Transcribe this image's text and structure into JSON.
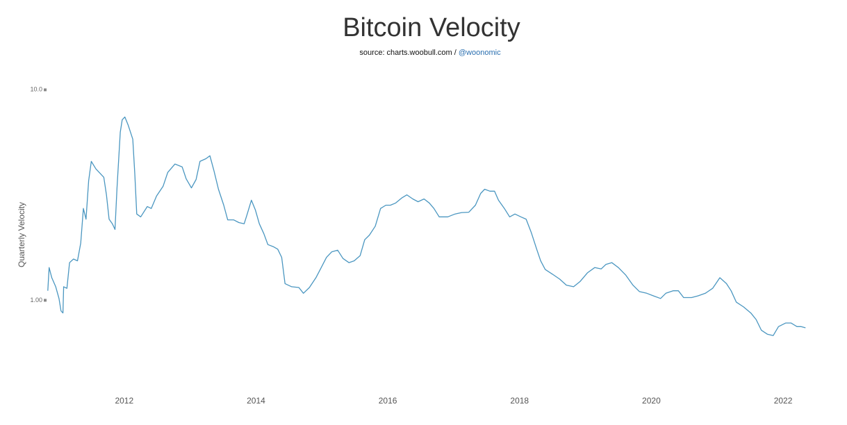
{
  "chart_data": {
    "type": "line",
    "title": "Bitcoin Velocity",
    "subtitle": "source: charts.woobull.com / ",
    "subtitle_link": "@woonomic",
    "y_label": "Quarterly Velocity",
    "yscale": "log",
    "xlim": [
      2010.8,
      2022.4
    ],
    "xticks": [
      2012,
      2014,
      2016,
      2018,
      2020,
      2022
    ],
    "ylim": [
      0.4,
      12.5
    ],
    "yticks": [
      {
        "value": 10,
        "label": "10.0"
      },
      {
        "value": 1,
        "label": "1.00"
      }
    ],
    "series": [
      {
        "name": "Quarterly Velocity",
        "color": "#4a96c0",
        "x": [
          2010.84,
          2010.86,
          2010.9,
          2010.96,
          2011.01,
          2011.04,
          2011.07,
          2011.08,
          2011.13,
          2011.17,
          2011.23,
          2011.29,
          2011.34,
          2011.38,
          2011.42,
          2011.46,
          2011.5,
          2011.57,
          2011.64,
          2011.69,
          2011.73,
          2011.77,
          2011.82,
          2011.86,
          2011.89,
          2011.94,
          2011.97,
          2012.01,
          2012.06,
          2012.13,
          2012.16,
          2012.19,
          2012.25,
          2012.35,
          2012.41,
          2012.49,
          2012.59,
          2012.66,
          2012.77,
          2012.88,
          2012.94,
          2013.02,
          2013.09,
          2013.15,
          2013.24,
          2013.3,
          2013.36,
          2013.43,
          2013.51,
          2013.57,
          2013.66,
          2013.74,
          2013.82,
          2013.86,
          2013.93,
          2013.99,
          2014.05,
          2014.12,
          2014.18,
          2014.26,
          2014.33,
          2014.39,
          2014.44,
          2014.54,
          2014.65,
          2014.72,
          2014.81,
          2014.91,
          2014.99,
          2015.07,
          2015.15,
          2015.24,
          2015.32,
          2015.41,
          2015.49,
          2015.58,
          2015.65,
          2015.72,
          2015.81,
          2015.89,
          2015.97,
          2016.04,
          2016.12,
          2016.21,
          2016.29,
          2016.38,
          2016.46,
          2016.55,
          2016.63,
          2016.7,
          2016.78,
          2016.91,
          2017.02,
          2017.12,
          2017.23,
          2017.33,
          2017.41,
          2017.47,
          2017.55,
          2017.62,
          2017.68,
          2017.77,
          2017.85,
          2017.93,
          2018.02,
          2018.1,
          2018.18,
          2018.26,
          2018.32,
          2018.39,
          2018.5,
          2018.61,
          2018.71,
          2018.82,
          2018.92,
          2019.03,
          2019.14,
          2019.24,
          2019.31,
          2019.4,
          2019.5,
          2019.61,
          2019.72,
          2019.82,
          2019.93,
          2020.03,
          2020.14,
          2020.22,
          2020.33,
          2020.41,
          2020.49,
          2020.61,
          2020.71,
          2020.82,
          2020.93,
          2020.98,
          2021.04,
          2021.14,
          2021.21,
          2021.29,
          2021.4,
          2021.51,
          2021.59,
          2021.67,
          2021.76,
          2021.85,
          2021.93,
          2022.04,
          2022.12,
          2022.21,
          2022.27,
          2022.34
        ],
        "values": [
          1.11,
          1.43,
          1.28,
          1.16,
          1.02,
          0.89,
          0.87,
          1.16,
          1.14,
          1.51,
          1.57,
          1.54,
          1.87,
          2.73,
          2.43,
          3.7,
          4.57,
          4.21,
          3.99,
          3.84,
          3.17,
          2.43,
          2.31,
          2.17,
          3.42,
          6.29,
          7.21,
          7.43,
          6.79,
          5.83,
          3.99,
          2.57,
          2.49,
          2.79,
          2.73,
          3.13,
          3.48,
          4.05,
          4.44,
          4.3,
          3.78,
          3.42,
          3.75,
          4.57,
          4.71,
          4.86,
          4.14,
          3.37,
          2.83,
          2.41,
          2.41,
          2.34,
          2.31,
          2.53,
          2.99,
          2.69,
          2.31,
          2.07,
          1.84,
          1.8,
          1.75,
          1.6,
          1.2,
          1.16,
          1.15,
          1.08,
          1.15,
          1.28,
          1.43,
          1.6,
          1.7,
          1.73,
          1.58,
          1.51,
          1.54,
          1.63,
          1.94,
          2.04,
          2.25,
          2.73,
          2.83,
          2.83,
          2.9,
          3.06,
          3.17,
          3.03,
          2.94,
          3.03,
          2.9,
          2.73,
          2.49,
          2.49,
          2.57,
          2.61,
          2.62,
          2.83,
          3.22,
          3.37,
          3.3,
          3.3,
          2.99,
          2.73,
          2.49,
          2.57,
          2.49,
          2.43,
          2.09,
          1.75,
          1.54,
          1.4,
          1.33,
          1.26,
          1.18,
          1.16,
          1.23,
          1.35,
          1.43,
          1.41,
          1.48,
          1.51,
          1.43,
          1.32,
          1.18,
          1.1,
          1.08,
          1.05,
          1.02,
          1.08,
          1.11,
          1.11,
          1.03,
          1.03,
          1.05,
          1.08,
          1.14,
          1.2,
          1.28,
          1.2,
          1.11,
          0.98,
          0.93,
          0.87,
          0.81,
          0.72,
          0.69,
          0.68,
          0.75,
          0.78,
          0.78,
          0.75,
          0.75,
          0.74
        ]
      }
    ]
  }
}
